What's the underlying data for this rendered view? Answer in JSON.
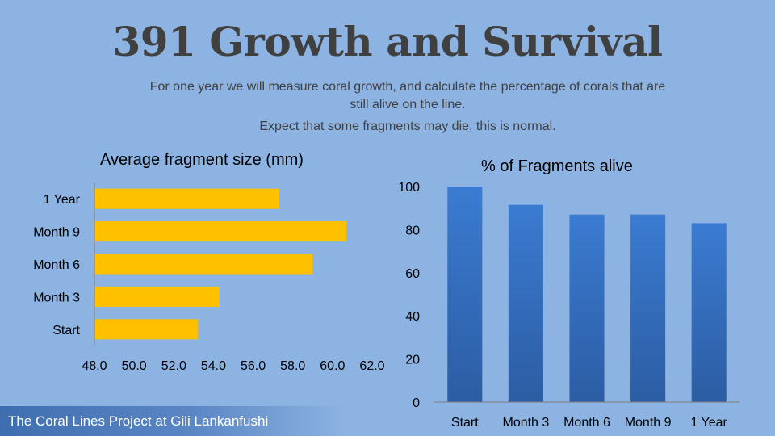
{
  "slide": {
    "title": "391 Growth and Survival",
    "subtitle_line1": "For one year we will measure coral growth, and calculate the percentage of corals that are",
    "subtitle_line2": "still alive on the line.",
    "subtitle_line3": "Expect that some fragments may die, this is normal.",
    "footer": "The Coral Lines Project at Gili Lankanfushi",
    "background_color": "#8db3e2"
  },
  "chart_data": [
    {
      "type": "bar",
      "orientation": "horizontal",
      "title": "Average fragment size (mm)",
      "categories": [
        "Start",
        "Month 3",
        "Month 6",
        "Month 9",
        "1 Year"
      ],
      "values": [
        53.2,
        54.3,
        59.0,
        60.7,
        57.3
      ],
      "xlim": [
        48.0,
        62.0
      ],
      "xticks": [
        "48.0",
        "50.0",
        "52.0",
        "54.0",
        "56.0",
        "58.0",
        "60.0",
        "62.0"
      ],
      "grid": false,
      "color": "#ffc000"
    },
    {
      "type": "bar",
      "orientation": "vertical",
      "title": "% of Fragments alive",
      "categories": [
        "Start",
        "Month 3",
        "Month 6",
        "Month 9",
        "1 Year"
      ],
      "values": [
        100,
        91.5,
        87,
        87,
        83
      ],
      "ylim": [
        0,
        100
      ],
      "yticks": [
        "0",
        "20",
        "40",
        "60",
        "80",
        "100"
      ],
      "grid": false,
      "color": "#3a73c4"
    }
  ]
}
